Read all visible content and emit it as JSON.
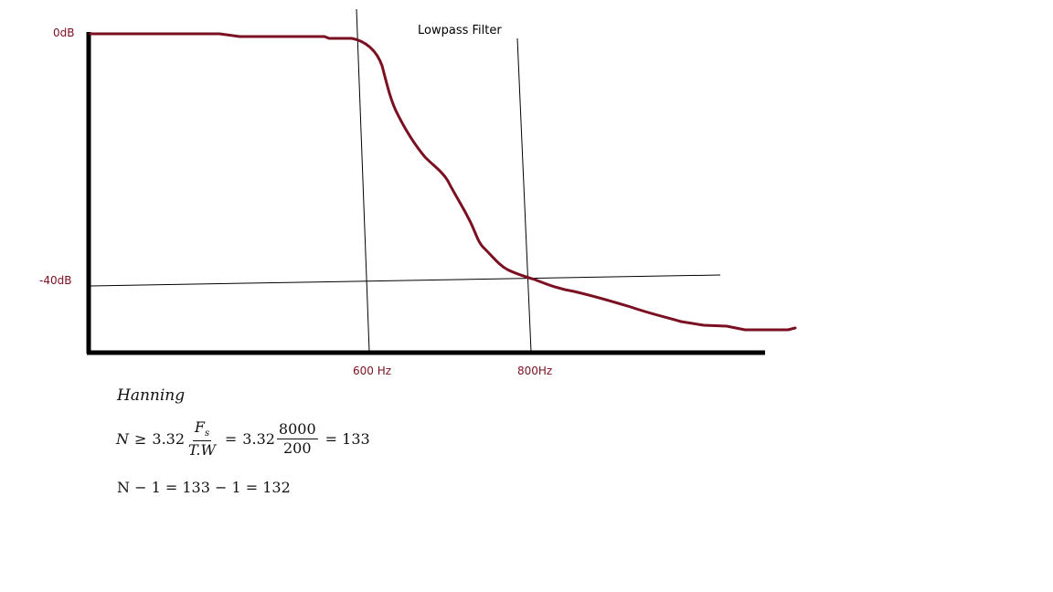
{
  "figure": {
    "title": "Lowpass Filter",
    "y_labels": {
      "top": "0dB",
      "mid": "-40dB"
    },
    "x_labels": {
      "f1": "600 Hz",
      "f2": "800Hz"
    },
    "curve_color": "#7a1022",
    "axis_color": "#000000"
  },
  "formula": {
    "window_name": "Hanning",
    "eq1": {
      "lhs": "N",
      "rel": "≥",
      "coef": "3.32",
      "frac1_num": "F",
      "frac1_num_sub": "s",
      "frac1_den": "T.W",
      "eq": "=",
      "coef2": "3.32",
      "frac2_num": "8000",
      "frac2_den": "200",
      "result": "= 133"
    },
    "eq2": "N − 1 = 133 − 1 = 132"
  }
}
